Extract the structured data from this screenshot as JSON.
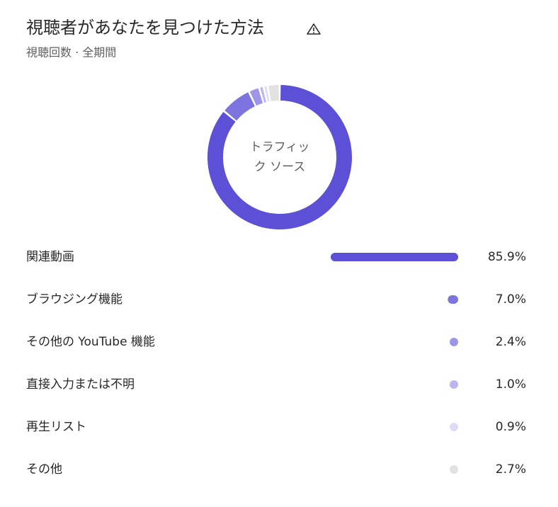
{
  "chart_data": {
    "type": "donut-bars",
    "title": "視聴者があなたを見つけた方法",
    "subtitle": "視聴回数 · 全期間",
    "center_label": "トラフィック ソース",
    "categories": [
      "関連動画",
      "ブラウジング機能",
      "その他の YouTube 機能",
      "直接入力または不明",
      "再生リスト",
      "その他"
    ],
    "values": [
      85.9,
      7.0,
      2.4,
      1.0,
      0.9,
      2.7
    ],
    "value_labels": [
      "85.9%",
      "7.0%",
      "2.4%",
      "1.0%",
      "0.9%",
      "2.7%"
    ],
    "colors": [
      "#5b50d6",
      "#7e74e0",
      "#9d96e8",
      "#bbb6f0",
      "#dddbf6",
      "#e2e2e2"
    ]
  }
}
